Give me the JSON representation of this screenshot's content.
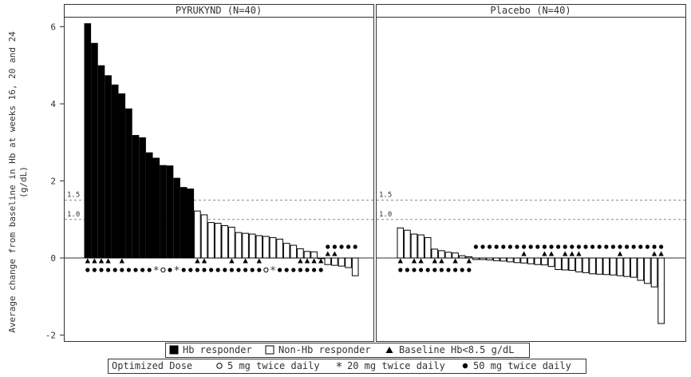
{
  "chart_data": {
    "type": "bar",
    "ylabel_line1": "Average change from baseline in Hb at weeks 16, 20 and 24",
    "ylabel_line2": "(g/dL)",
    "yticks": [
      -2,
      0,
      2,
      4,
      6
    ],
    "ylim": [
      -2.2,
      6.3
    ],
    "reference_lines": [
      {
        "value": 1.5,
        "label": "1.5"
      },
      {
        "value": 1.0,
        "label": "1.0"
      }
    ],
    "panels": [
      {
        "title": "PYRUKYND (N=40)",
        "values": [
          6.08,
          5.57,
          4.99,
          4.73,
          4.49,
          4.26,
          3.87,
          3.18,
          3.12,
          2.73,
          2.59,
          2.4,
          2.39,
          2.07,
          1.83,
          1.79,
          1.22,
          1.12,
          0.92,
          0.9,
          0.84,
          0.8,
          0.66,
          0.64,
          0.62,
          0.58,
          0.56,
          0.53,
          0.49,
          0.38,
          0.33,
          0.24,
          0.17,
          0.16,
          0.0,
          -0.17,
          -0.19,
          -0.21,
          -0.25,
          -0.46
        ],
        "responder": [
          true,
          true,
          true,
          true,
          true,
          true,
          true,
          true,
          true,
          true,
          true,
          true,
          true,
          true,
          true,
          true,
          false,
          false,
          false,
          false,
          false,
          false,
          false,
          false,
          false,
          false,
          false,
          false,
          false,
          false,
          false,
          false,
          false,
          false,
          false,
          false,
          false,
          false,
          false,
          false
        ],
        "baseline_hb_lt_8_5": [
          true,
          true,
          true,
          true,
          false,
          true,
          false,
          false,
          false,
          false,
          false,
          false,
          false,
          false,
          false,
          false,
          true,
          true,
          false,
          false,
          false,
          true,
          false,
          true,
          false,
          true,
          false,
          false,
          false,
          false,
          false,
          true,
          true,
          true,
          true,
          true,
          true,
          false,
          false,
          false
        ],
        "dose": [
          "50",
          "50",
          "50",
          "50",
          "50",
          "50",
          "50",
          "50",
          "50",
          "50",
          "20",
          "5",
          "50",
          "20",
          "50",
          "50",
          "50",
          "50",
          "50",
          "50",
          "50",
          "50",
          "50",
          "50",
          "50",
          "50",
          "5",
          "20",
          "50",
          "50",
          "50",
          "50",
          "50",
          "50",
          "50",
          "50",
          "50",
          "50",
          "50",
          "50"
        ]
      },
      {
        "title": "Placebo (N=40)",
        "values": [
          0.78,
          0.72,
          0.62,
          0.6,
          0.53,
          0.23,
          0.19,
          0.15,
          0.13,
          0.06,
          0.03,
          -0.04,
          -0.04,
          -0.05,
          -0.07,
          -0.08,
          -0.1,
          -0.12,
          -0.13,
          -0.15,
          -0.17,
          -0.18,
          -0.22,
          -0.3,
          -0.31,
          -0.32,
          -0.36,
          -0.38,
          -0.41,
          -0.42,
          -0.43,
          -0.44,
          -0.46,
          -0.48,
          -0.5,
          -0.58,
          -0.66,
          -0.75,
          -1.7
        ],
        "responder": [
          false,
          false,
          false,
          false,
          false,
          false,
          false,
          false,
          false,
          false,
          false,
          false,
          false,
          false,
          false,
          false,
          false,
          false,
          false,
          false,
          false,
          false,
          false,
          false,
          false,
          false,
          false,
          false,
          false,
          false,
          false,
          false,
          false,
          false,
          false,
          false,
          false,
          false,
          false
        ],
        "baseline_hb_lt_8_5": [
          true,
          false,
          true,
          true,
          false,
          true,
          true,
          false,
          true,
          false,
          true,
          false,
          false,
          false,
          false,
          false,
          false,
          false,
          true,
          false,
          false,
          true,
          true,
          false,
          true,
          true,
          true,
          false,
          false,
          false,
          false,
          false,
          true,
          false,
          false,
          false,
          false,
          true,
          true
        ],
        "dose": [
          "50",
          "50",
          "50",
          "50",
          "50",
          "50",
          "50",
          "50",
          "50",
          "50",
          "50",
          "50",
          "50",
          "50",
          "50",
          "50",
          "50",
          "50",
          "50",
          "50",
          "50",
          "50",
          "50",
          "50",
          "50",
          "50",
          "50",
          "50",
          "50",
          "50",
          "50",
          "50",
          "50",
          "50",
          "50",
          "50",
          "50",
          "50",
          "50"
        ]
      }
    ],
    "legend1": {
      "responder": "Hb responder",
      "non_responder": "Non-Hb responder",
      "baseline": "Baseline Hb<8.5 g/dL"
    },
    "legend2": {
      "title": "Optimized Dose",
      "dose5": "5 mg twice daily",
      "dose20": "20 mg twice daily",
      "dose50": "50 mg twice daily"
    }
  }
}
